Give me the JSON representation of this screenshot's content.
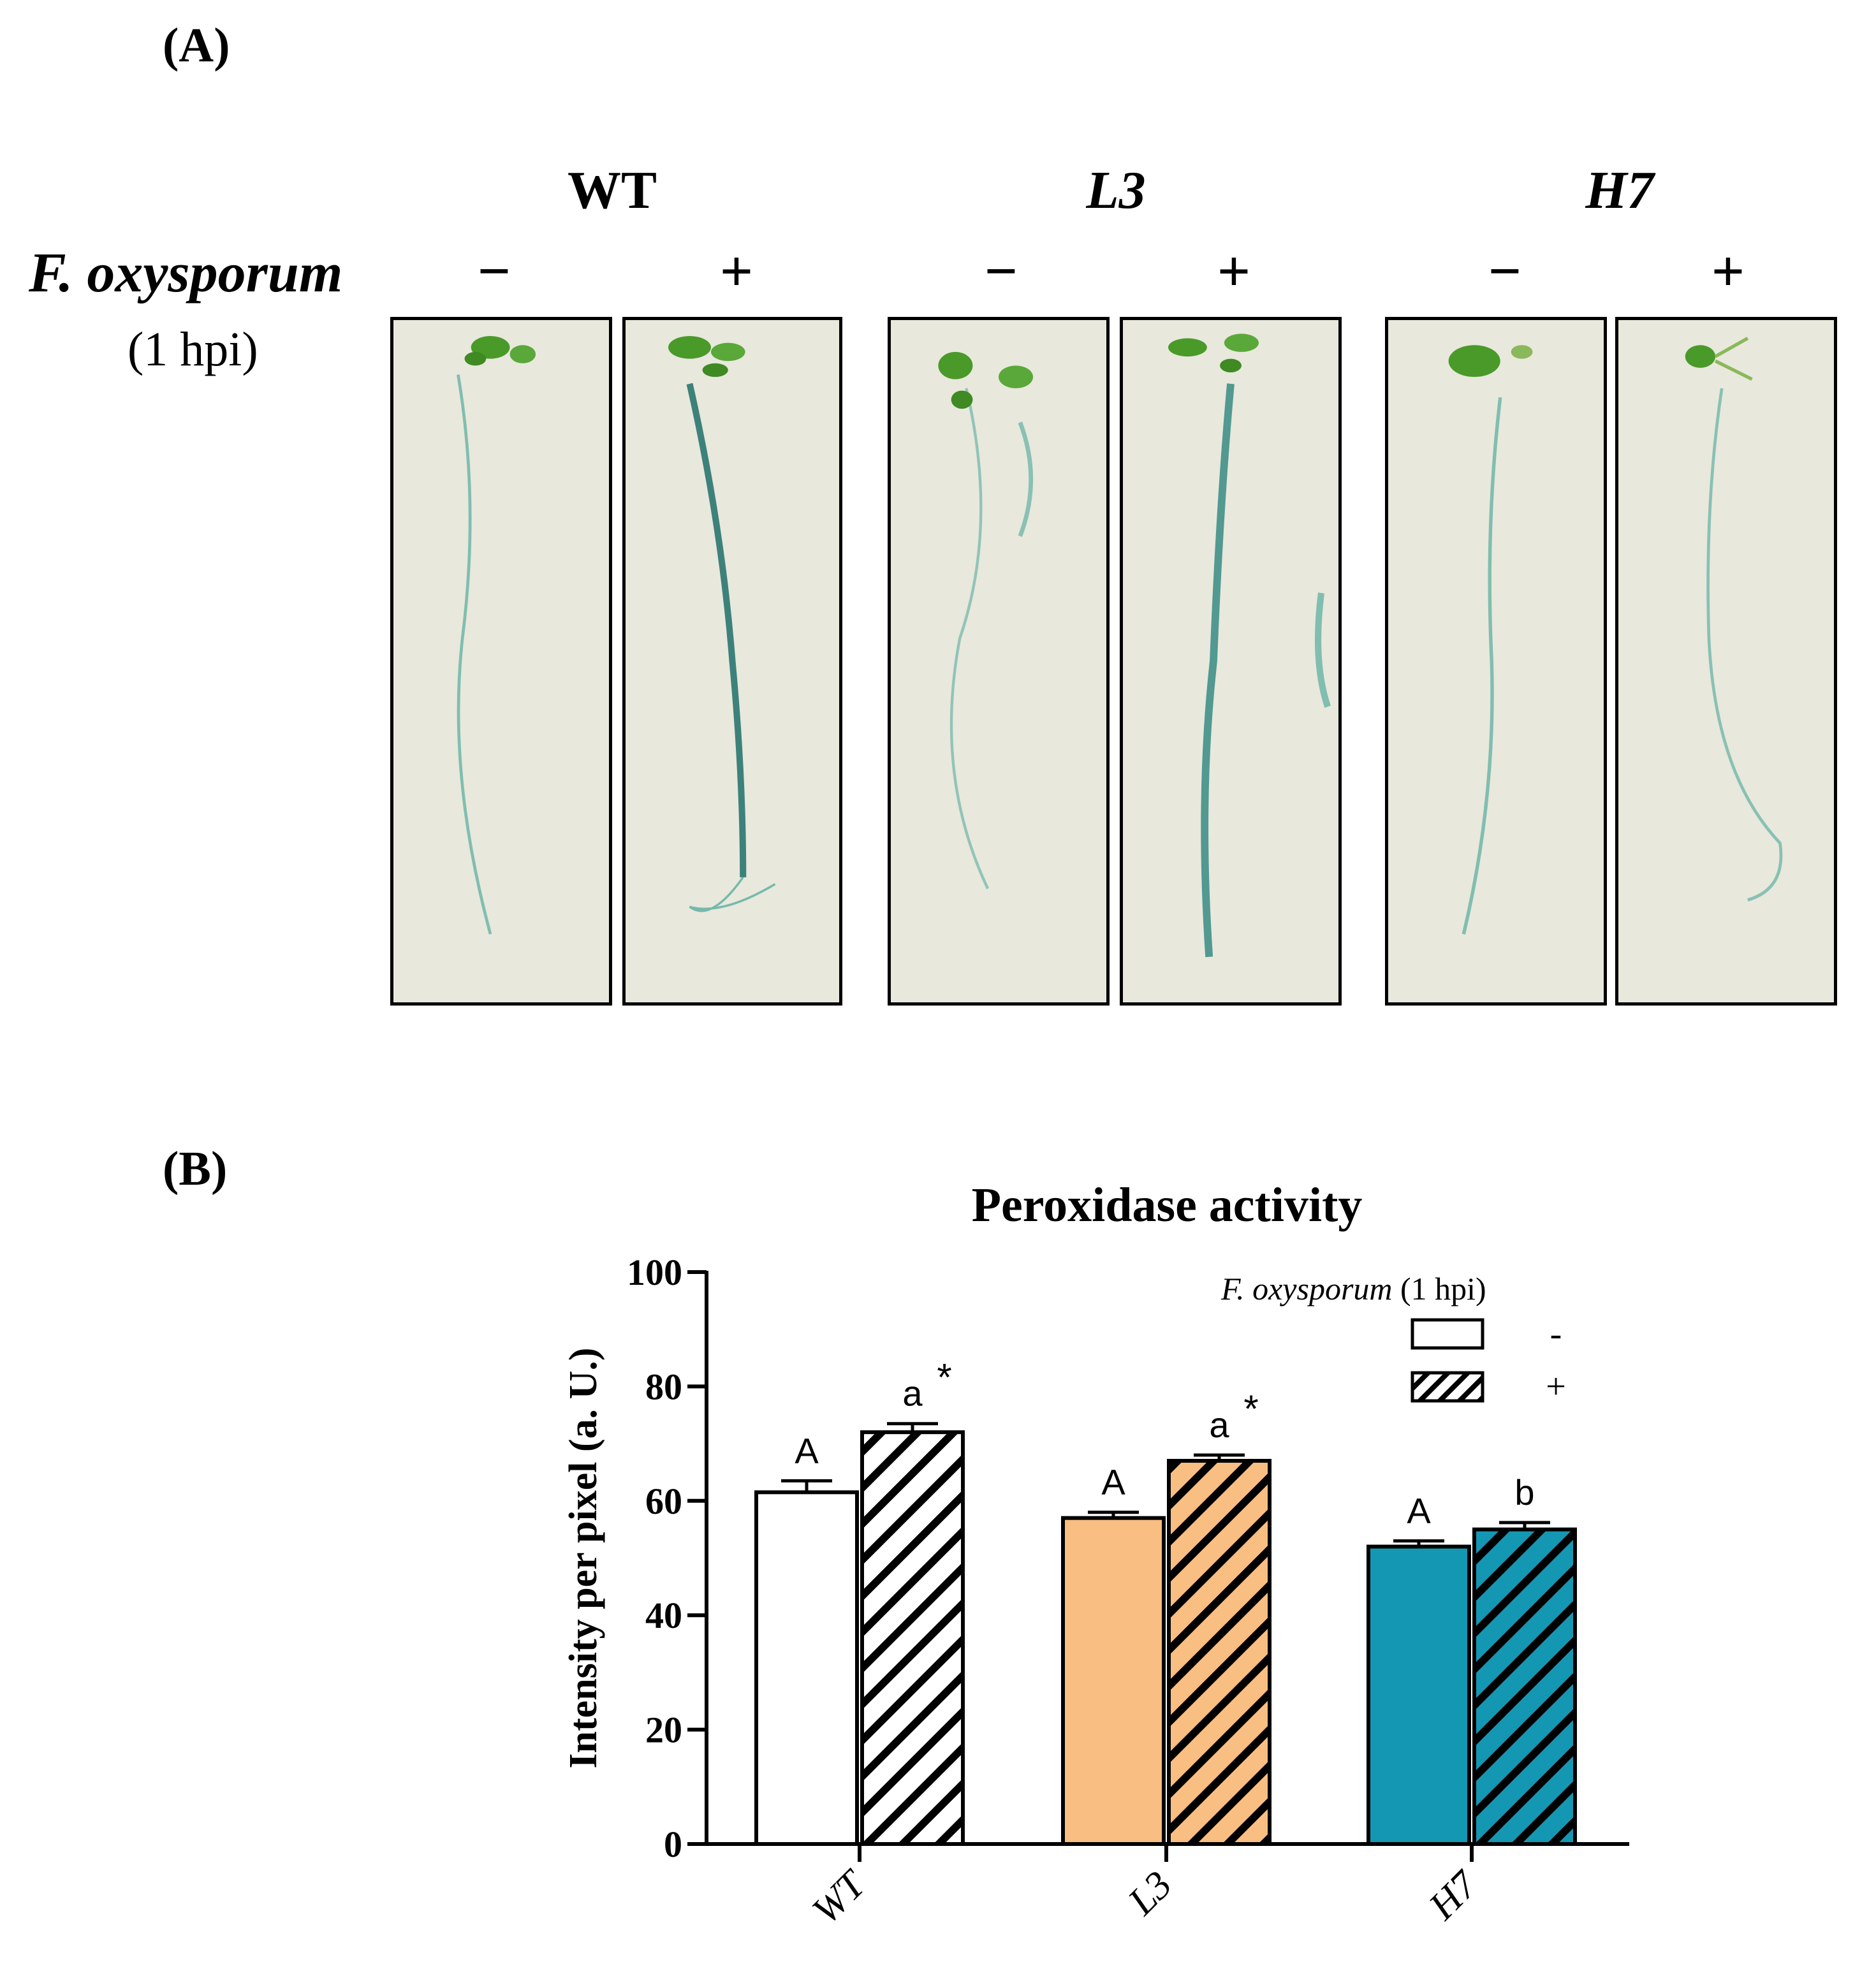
{
  "panels": {
    "a_label": "(A)",
    "b_label": "(B)"
  },
  "photo_panel": {
    "genotypes": [
      "WT",
      "L3",
      "H7"
    ],
    "treatment_label": "F. oxysporum",
    "time_label": "(1 hpi)",
    "minus_sign": "−",
    "plus_sign": "+",
    "images": [
      {
        "genotype": "WT",
        "treatment": "−",
        "stain": "light"
      },
      {
        "genotype": "WT",
        "treatment": "+",
        "stain": "strong"
      },
      {
        "genotype": "L3",
        "treatment": "−",
        "stain": "light"
      },
      {
        "genotype": "L3",
        "treatment": "+",
        "stain": "strong"
      },
      {
        "genotype": "H7",
        "treatment": "−",
        "stain": "light"
      },
      {
        "genotype": "H7",
        "treatment": "+",
        "stain": "light"
      }
    ],
    "colors": {
      "background": "#e8e8dc",
      "stain": "#2a9a8c",
      "leaf": "#4a9a2a"
    }
  },
  "chart_data": {
    "type": "bar",
    "title": "Peroxidase activity",
    "ylabel": "Intensity per pixel (a. U.)",
    "xlabel": "",
    "categories": [
      "WT",
      "L3",
      "H7"
    ],
    "ylim": [
      0,
      100
    ],
    "yticks": [
      0,
      20,
      40,
      60,
      80,
      100
    ],
    "legend": {
      "title_italic": "F. oxysporum",
      "title_plain": " (1 hpi)",
      "entries": [
        "-",
        "+"
      ],
      "placement": "top-right"
    },
    "series": [
      {
        "name": "-",
        "values": [
          61.5,
          57,
          52
        ],
        "errors": [
          2,
          1,
          1
        ],
        "letters": [
          "A",
          "A",
          "A"
        ],
        "stars": [
          "",
          "",
          ""
        ],
        "pattern": "solid"
      },
      {
        "name": "+",
        "values": [
          72,
          67,
          55
        ],
        "errors": [
          1.5,
          1,
          1.2
        ],
        "letters": [
          "a",
          "a",
          "b"
        ],
        "stars": [
          "*",
          "*",
          ""
        ],
        "pattern": "hatched"
      }
    ],
    "category_colors": [
      "#ffffff",
      "#f9be82",
      "#1497b2"
    ]
  }
}
